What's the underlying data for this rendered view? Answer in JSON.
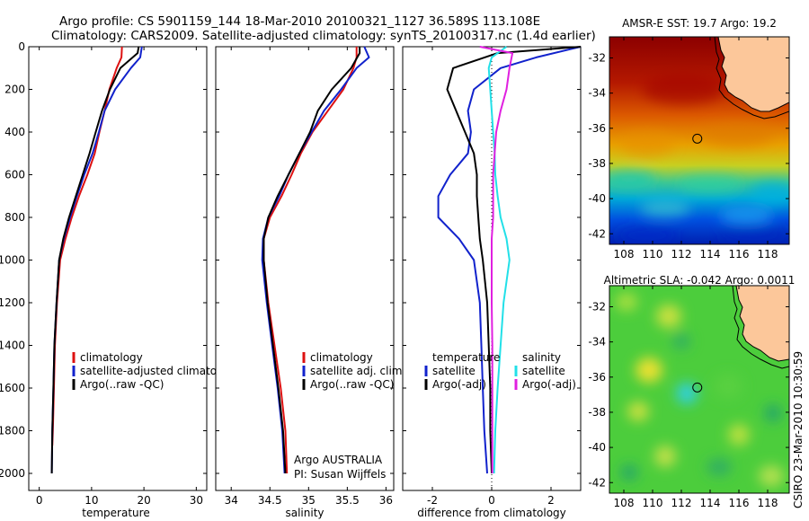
{
  "header": {
    "title_line1": "Argo profile: CS 5901159_144 18-Mar-2010 20100321_1127 36.589S 113.108E",
    "title_line2": "Climatology: CARS2009. Satellite-adjusted climatology: synTS_20100317.nc (1.4d earlier)"
  },
  "footer_vertical": "CSIRO 23-Mar-2010 10:30:59",
  "colors": {
    "climatology": "#dd1111",
    "satellite": "#1122cc",
    "argo": "#000000",
    "salinity_satellite": "#22e0e8",
    "salinity_argo": "#e020e0"
  },
  "chart_data": [
    {
      "type": "line",
      "id": "temperature",
      "xlabel": "temperature",
      "ylabel": "",
      "xlim": [
        -2,
        32
      ],
      "ylim": [
        2080,
        0
      ],
      "xticks": [
        0,
        10,
        20,
        30
      ],
      "yticks": [
        0,
        200,
        400,
        600,
        800,
        1000,
        1200,
        1400,
        1600,
        1800,
        2000
      ],
      "legend": [
        "climatology",
        "satellite-adjusted climatology",
        "Argo(..raw -QC)"
      ],
      "legend_position": "lower-right",
      "series": [
        {
          "name": "climatology",
          "color_key": "climatology",
          "x": [
            15.8,
            15.7,
            14.8,
            13.4,
            12.5,
            11.5,
            10.6,
            9.2,
            7.6,
            6.2,
            5.0,
            4.0,
            3.4,
            3.0,
            2.8,
            2.6,
            2.5
          ],
          "y": [
            0,
            50,
            100,
            200,
            300,
            400,
            500,
            600,
            700,
            800,
            900,
            1000,
            1200,
            1400,
            1600,
            1800,
            1870
          ]
        },
        {
          "name": "satellite-adjusted climatology",
          "color_key": "satellite",
          "x": [
            19.6,
            19.3,
            17.5,
            14.5,
            12.5,
            11.4,
            10.2,
            8.6,
            7.2,
            5.9,
            4.7,
            3.8,
            3.3,
            2.9,
            2.7,
            2.5,
            2.4
          ],
          "y": [
            0,
            50,
            100,
            200,
            300,
            400,
            500,
            600,
            700,
            800,
            900,
            1000,
            1200,
            1400,
            1600,
            1800,
            2000
          ]
        },
        {
          "name": "Argo(..raw -QC)",
          "color_key": "argo",
          "x": [
            19.0,
            18.8,
            15.5,
            13.5,
            12.0,
            10.8,
            9.6,
            8.3,
            7.0,
            5.7,
            4.6,
            3.8,
            3.3,
            2.9,
            2.7,
            2.5,
            2.4
          ],
          "y": [
            0,
            30,
            100,
            200,
            300,
            400,
            500,
            600,
            700,
            800,
            900,
            1000,
            1200,
            1400,
            1600,
            1800,
            2000
          ]
        }
      ]
    },
    {
      "type": "line",
      "id": "salinity",
      "xlabel": "salinity",
      "ylabel": "",
      "xlim": [
        33.8,
        36.1
      ],
      "ylim": [
        2080,
        0
      ],
      "xticks": [
        34,
        34.5,
        35,
        35.5,
        36
      ],
      "legend": [
        "climatology",
        "satellite adj. clim.",
        "Argo(..raw -QC)"
      ],
      "legend_position": "lower-right",
      "annotations": [
        "Argo AUSTRALIA",
        "PI: Susan Wijffels"
      ],
      "series": [
        {
          "name": "climatology",
          "color_key": "climatology",
          "x": [
            35.62,
            35.62,
            35.58,
            35.45,
            35.25,
            35.05,
            34.9,
            34.78,
            34.65,
            34.5,
            34.42,
            34.42,
            34.48,
            34.56,
            34.64,
            34.7,
            34.72
          ],
          "y": [
            0,
            50,
            100,
            200,
            300,
            400,
            500,
            600,
            700,
            800,
            900,
            1000,
            1200,
            1400,
            1600,
            1800,
            2000
          ]
        },
        {
          "name": "satellite adj. clim.",
          "color_key": "satellite",
          "x": [
            35.72,
            35.78,
            35.62,
            35.42,
            35.2,
            35.04,
            34.88,
            34.74,
            34.62,
            34.48,
            34.41,
            34.4,
            34.46,
            34.53,
            34.6,
            34.66,
            34.69
          ],
          "y": [
            0,
            50,
            100,
            200,
            300,
            400,
            500,
            600,
            700,
            800,
            900,
            1000,
            1200,
            1400,
            1600,
            1800,
            2000
          ]
        },
        {
          "name": "Argo(..raw -QC)",
          "color_key": "argo",
          "x": [
            35.66,
            35.66,
            35.55,
            35.3,
            35.12,
            35.02,
            34.88,
            34.74,
            34.6,
            34.48,
            34.42,
            34.42,
            34.47,
            34.54,
            34.61,
            34.67,
            34.7
          ],
          "y": [
            0,
            30,
            100,
            200,
            300,
            400,
            500,
            600,
            700,
            800,
            900,
            1000,
            1200,
            1400,
            1600,
            1800,
            2000
          ]
        }
      ]
    },
    {
      "type": "line",
      "id": "difference",
      "xlabel": "difference from climatology",
      "ylabel": "",
      "xlim": [
        -3,
        3
      ],
      "ylim": [
        2080,
        0
      ],
      "xticks": [
        -2,
        0,
        2
      ],
      "legend_left_title": "temperature",
      "legend_left": [
        "satellite",
        "Argo(-adj)"
      ],
      "legend_right_title": "salinity",
      "legend_right": [
        "satellite",
        "Argo(-adj)"
      ],
      "legend_position": "lower-center",
      "series": [
        {
          "name": "temperature satellite",
          "color_key": "satellite",
          "x": [
            3.0,
            1.5,
            0.3,
            -0.6,
            -0.8,
            -0.7,
            -0.8,
            -1.4,
            -1.8,
            -1.8,
            -1.1,
            -0.6,
            -0.4,
            -0.35,
            -0.3,
            -0.25,
            -0.15
          ],
          "y": [
            0,
            50,
            100,
            200,
            300,
            400,
            500,
            600,
            700,
            800,
            900,
            1000,
            1200,
            1400,
            1600,
            1800,
            2000
          ]
        },
        {
          "name": "temperature Argo(-adj)",
          "color_key": "argo",
          "x": [
            3.0,
            0.2,
            -1.3,
            -1.5,
            -1.2,
            -0.9,
            -0.6,
            -0.5,
            -0.5,
            -0.45,
            -0.4,
            -0.3,
            -0.15,
            -0.1,
            -0.05,
            -0.05,
            0.0
          ],
          "y": [
            0,
            30,
            100,
            200,
            300,
            400,
            500,
            600,
            700,
            800,
            900,
            1000,
            1200,
            1400,
            1600,
            1800,
            2000
          ]
        },
        {
          "name": "salinity satellite",
          "color_key": "salinity_satellite",
          "x": [
            0.5,
            0.0,
            -0.1,
            -0.05,
            0.0,
            0.05,
            0.1,
            0.12,
            0.2,
            0.3,
            0.5,
            0.6,
            0.4,
            0.3,
            0.2,
            0.12,
            0.08
          ],
          "y": [
            0,
            50,
            100,
            200,
            300,
            400,
            500,
            600,
            700,
            800,
            900,
            1000,
            1200,
            1400,
            1600,
            1800,
            2000
          ]
        },
        {
          "name": "salinity Argo(-adj)",
          "color_key": "salinity_argo",
          "x": [
            -0.4,
            0.7,
            0.6,
            0.5,
            0.3,
            0.15,
            0.1,
            0.05,
            0.05,
            0.05,
            0.0,
            0.0,
            0.0,
            0.02,
            0.02,
            0.02,
            0.02
          ],
          "y": [
            0,
            30,
            100,
            200,
            300,
            400,
            500,
            600,
            700,
            800,
            900,
            1000,
            1200,
            1400,
            1600,
            1800,
            2000
          ]
        }
      ]
    },
    {
      "type": "heatmap",
      "id": "sst_map",
      "title": "AMSR-E SST: 19.7 Argo: 19.2",
      "xlim": [
        107,
        119.5
      ],
      "ylim": [
        -42.6,
        -30.8
      ],
      "xticks": [
        108,
        110,
        112,
        114,
        116,
        118
      ],
      "yticks": [
        -32,
        -34,
        -36,
        -38,
        -40,
        -42
      ],
      "marker": {
        "lon": 113.108,
        "lat": -36.589
      },
      "colormap": "jet"
    },
    {
      "type": "heatmap",
      "id": "sla_map",
      "title": "Altimetric SLA: -0.042 Argo: 0.0011",
      "xlim": [
        107,
        119.5
      ],
      "ylim": [
        -42.6,
        -30.8
      ],
      "xticks": [
        108,
        110,
        112,
        114,
        116,
        118
      ],
      "yticks": [
        -32,
        -34,
        -36,
        -38,
        -40,
        -42
      ],
      "marker": {
        "lon": 113.108,
        "lat": -36.589
      },
      "colormap": "jet"
    }
  ]
}
